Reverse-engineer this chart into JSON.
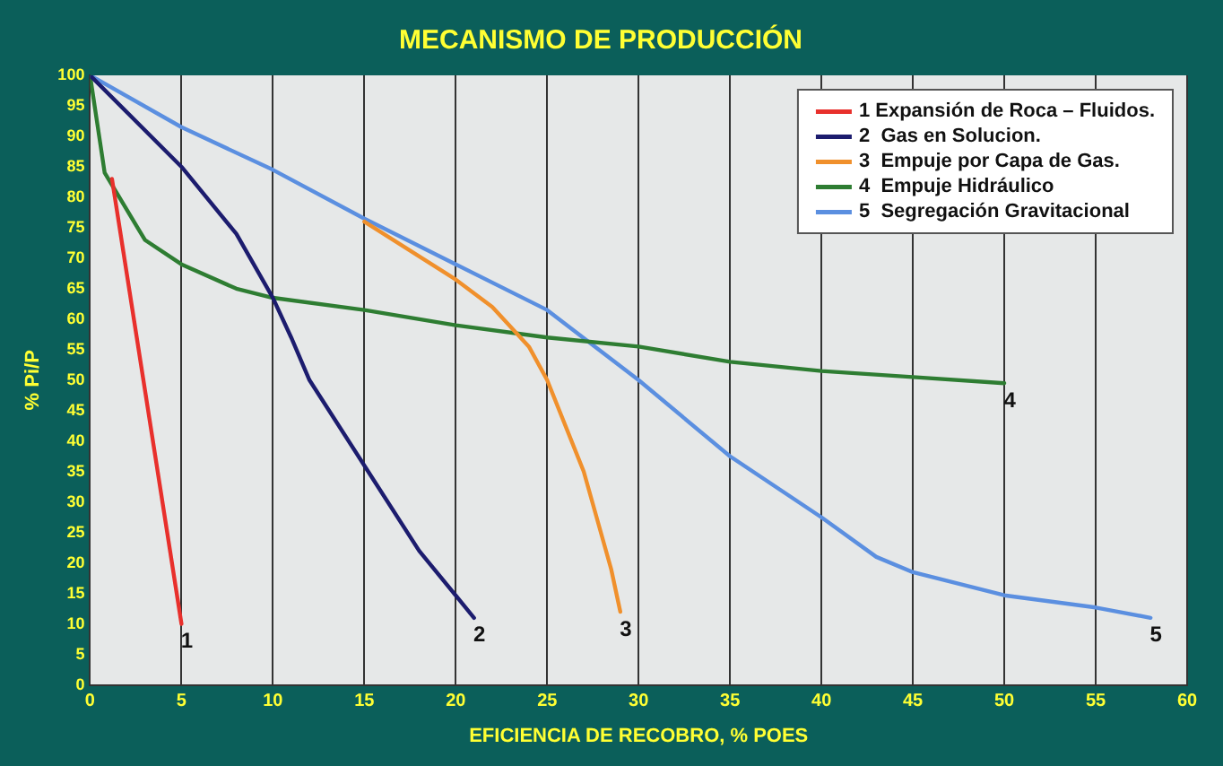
{
  "chart_data": {
    "type": "line",
    "title": "MECANISMO DE PRODUCCIÓN",
    "xlabel": "EFICIENCIA DE RECOBRO, % POES",
    "ylabel": "% Pi/P",
    "xlim": [
      0,
      60
    ],
    "xticks": [
      0,
      5,
      10,
      15,
      20,
      25,
      30,
      35,
      40,
      45,
      50,
      55,
      60
    ],
    "ylim": [
      0,
      100
    ],
    "yticks": [
      0,
      5,
      10,
      15,
      20,
      25,
      30,
      35,
      40,
      45,
      50,
      55,
      60,
      65,
      70,
      75,
      80,
      85,
      90,
      95,
      100
    ],
    "grid": "x",
    "legend": "top right",
    "marker": "none",
    "line_style": "solid",
    "series": [
      {
        "name": "1 Expansión de Roca – Fluidos.",
        "color": "#e8302c",
        "x": [
          1.2,
          5
        ],
        "values": [
          83,
          10
        ]
      },
      {
        "name": "2  Gas en Solucion.",
        "color": "#1c1c6e",
        "x": [
          0,
          5,
          8,
          10,
          11,
          12,
          15,
          18,
          21
        ],
        "values": [
          100,
          85,
          74,
          63.5,
          57,
          50,
          36,
          22,
          11
        ]
      },
      {
        "name": "3  Empuje por Capa de Gas.",
        "color": "#f0902c",
        "x": [
          15,
          20,
          22,
          24,
          25,
          27,
          28.5,
          29
        ],
        "values": [
          76,
          66.5,
          62,
          55.5,
          50,
          35,
          19,
          12
        ]
      },
      {
        "name": "4  Empuje Hidráulico",
        "color": "#2e7d32",
        "x": [
          0,
          0.8,
          3,
          5,
          8,
          10,
          15,
          20,
          25,
          30,
          35,
          40,
          45,
          50
        ],
        "values": [
          100,
          84,
          73,
          69,
          65,
          63.5,
          61.5,
          59,
          57,
          55.5,
          53,
          51.5,
          50.5,
          49.5
        ]
      },
      {
        "name": "5  Segregación Gravitacional",
        "color": "#5b8fe0",
        "x": [
          0,
          5,
          10,
          15,
          20,
          25,
          30,
          35,
          40,
          43,
          45,
          50,
          55,
          58
        ],
        "values": [
          100,
          91.5,
          84.5,
          76.5,
          69,
          61.5,
          50,
          37.5,
          27.5,
          21,
          18.5,
          14.7,
          12.7,
          11
        ]
      }
    ],
    "annotations": [
      {
        "text": "1",
        "x": 5,
        "y": 10
      },
      {
        "text": "2",
        "x": 21,
        "y": 11
      },
      {
        "text": "3",
        "x": 29,
        "y": 12
      },
      {
        "text": "4",
        "x": 50,
        "y": 49.5
      },
      {
        "text": "5",
        "x": 58,
        "y": 11
      }
    ]
  }
}
